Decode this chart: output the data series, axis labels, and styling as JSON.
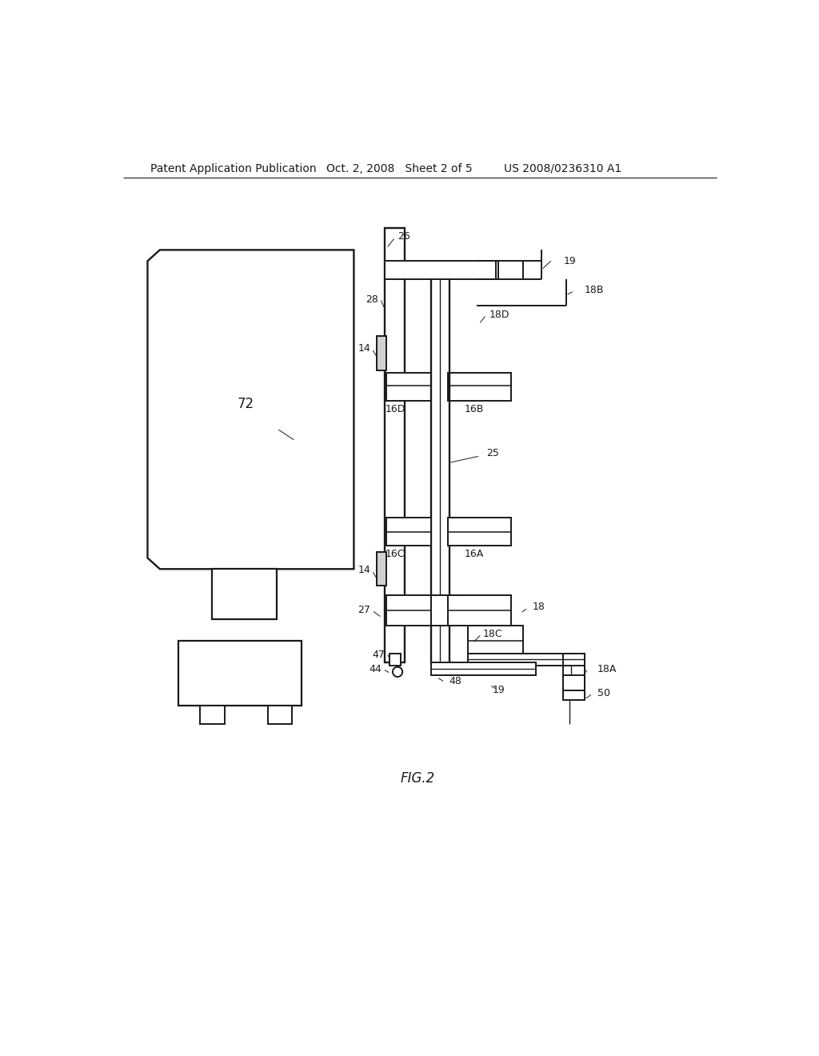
{
  "background_color": "#ffffff",
  "header_left": "Patent Application Publication",
  "header_center": "Oct. 2, 2008   Sheet 2 of 5",
  "header_right": "US 2008/0236310 A1",
  "fig_label": "FIG.2",
  "header_fontsize": 10,
  "label_fontsize": 9.5,
  "line_color": "#1a1a1a",
  "line_width": 1.4
}
